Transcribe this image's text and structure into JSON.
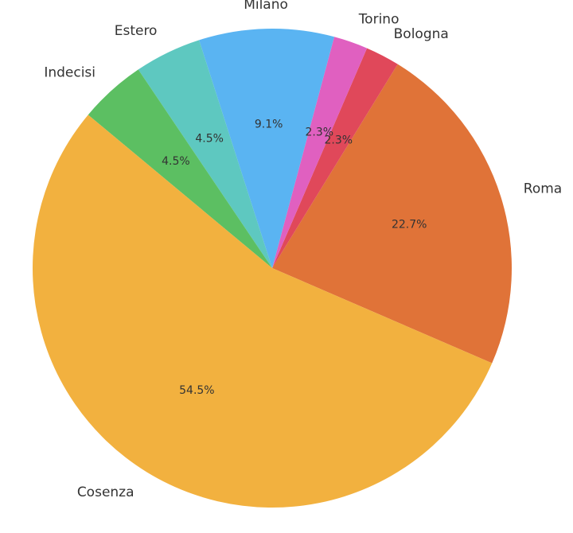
{
  "chart_data": {
    "type": "pie",
    "categories": [
      "Roma",
      "Bologna",
      "Torino",
      "Milano",
      "Estero",
      "Indecisi",
      "Cosenza"
    ],
    "values": [
      22.7,
      2.3,
      2.3,
      9.1,
      4.5,
      4.5,
      54.5
    ],
    "value_labels": [
      "22.7%",
      "2.3%",
      "2.3%",
      "9.1%",
      "4.5%",
      "4.5%",
      "54.5%"
    ],
    "colors": [
      "#e07338",
      "#e0485a",
      "#e060c0",
      "#5ab4f2",
      "#5ec8c0",
      "#5cbf62",
      "#f2b13f"
    ]
  }
}
